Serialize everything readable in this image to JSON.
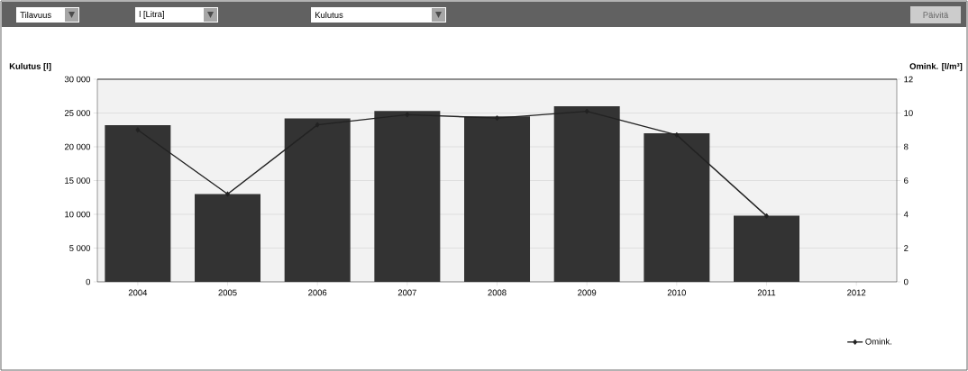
{
  "chart_data": {
    "type": "bar",
    "annotations": [
      "Tilavuus",
      "l [Litra]",
      "Kulutus",
      "Päivitä"
    ],
    "ylabel": "Kulutus [l]",
    "y2label": "Omink. [l/m³]",
    "categories": [
      "2004",
      "2005",
      "2006",
      "2007",
      "2008",
      "2009",
      "2010",
      "2011",
      "2012"
    ],
    "series": [
      {
        "color": "#333333",
        "values": [
          23200,
          13000,
          24200,
          25300,
          24500,
          26000,
          22000,
          9800,
          null
        ]
      },
      {
        "type": "line",
        "axis": "y2",
        "name": "Omink.",
        "color": "#222222",
        "values": [
          9.0,
          5.2,
          9.3,
          9.9,
          9.7,
          10.1,
          8.7,
          3.9,
          null
        ]
      }
    ],
    "ylim": [
      0,
      30000
    ],
    "yticks": [
      {
        "value": 0,
        "label": "0"
      },
      {
        "value": 5000,
        "label": "5 000"
      },
      {
        "value": 10000,
        "label": "10 000"
      },
      {
        "value": 15000,
        "label": "15 000"
      },
      {
        "value": 20000,
        "label": "20 000"
      },
      {
        "value": 25000,
        "label": "25 000"
      },
      {
        "value": 30000,
        "label": "30 000"
      }
    ],
    "y2lim": [
      0,
      12
    ],
    "y2ticks": [
      0,
      2,
      4,
      6,
      8,
      10,
      12
    ],
    "grid": "y",
    "legend": "bottom right",
    "marker": "diamond"
  }
}
